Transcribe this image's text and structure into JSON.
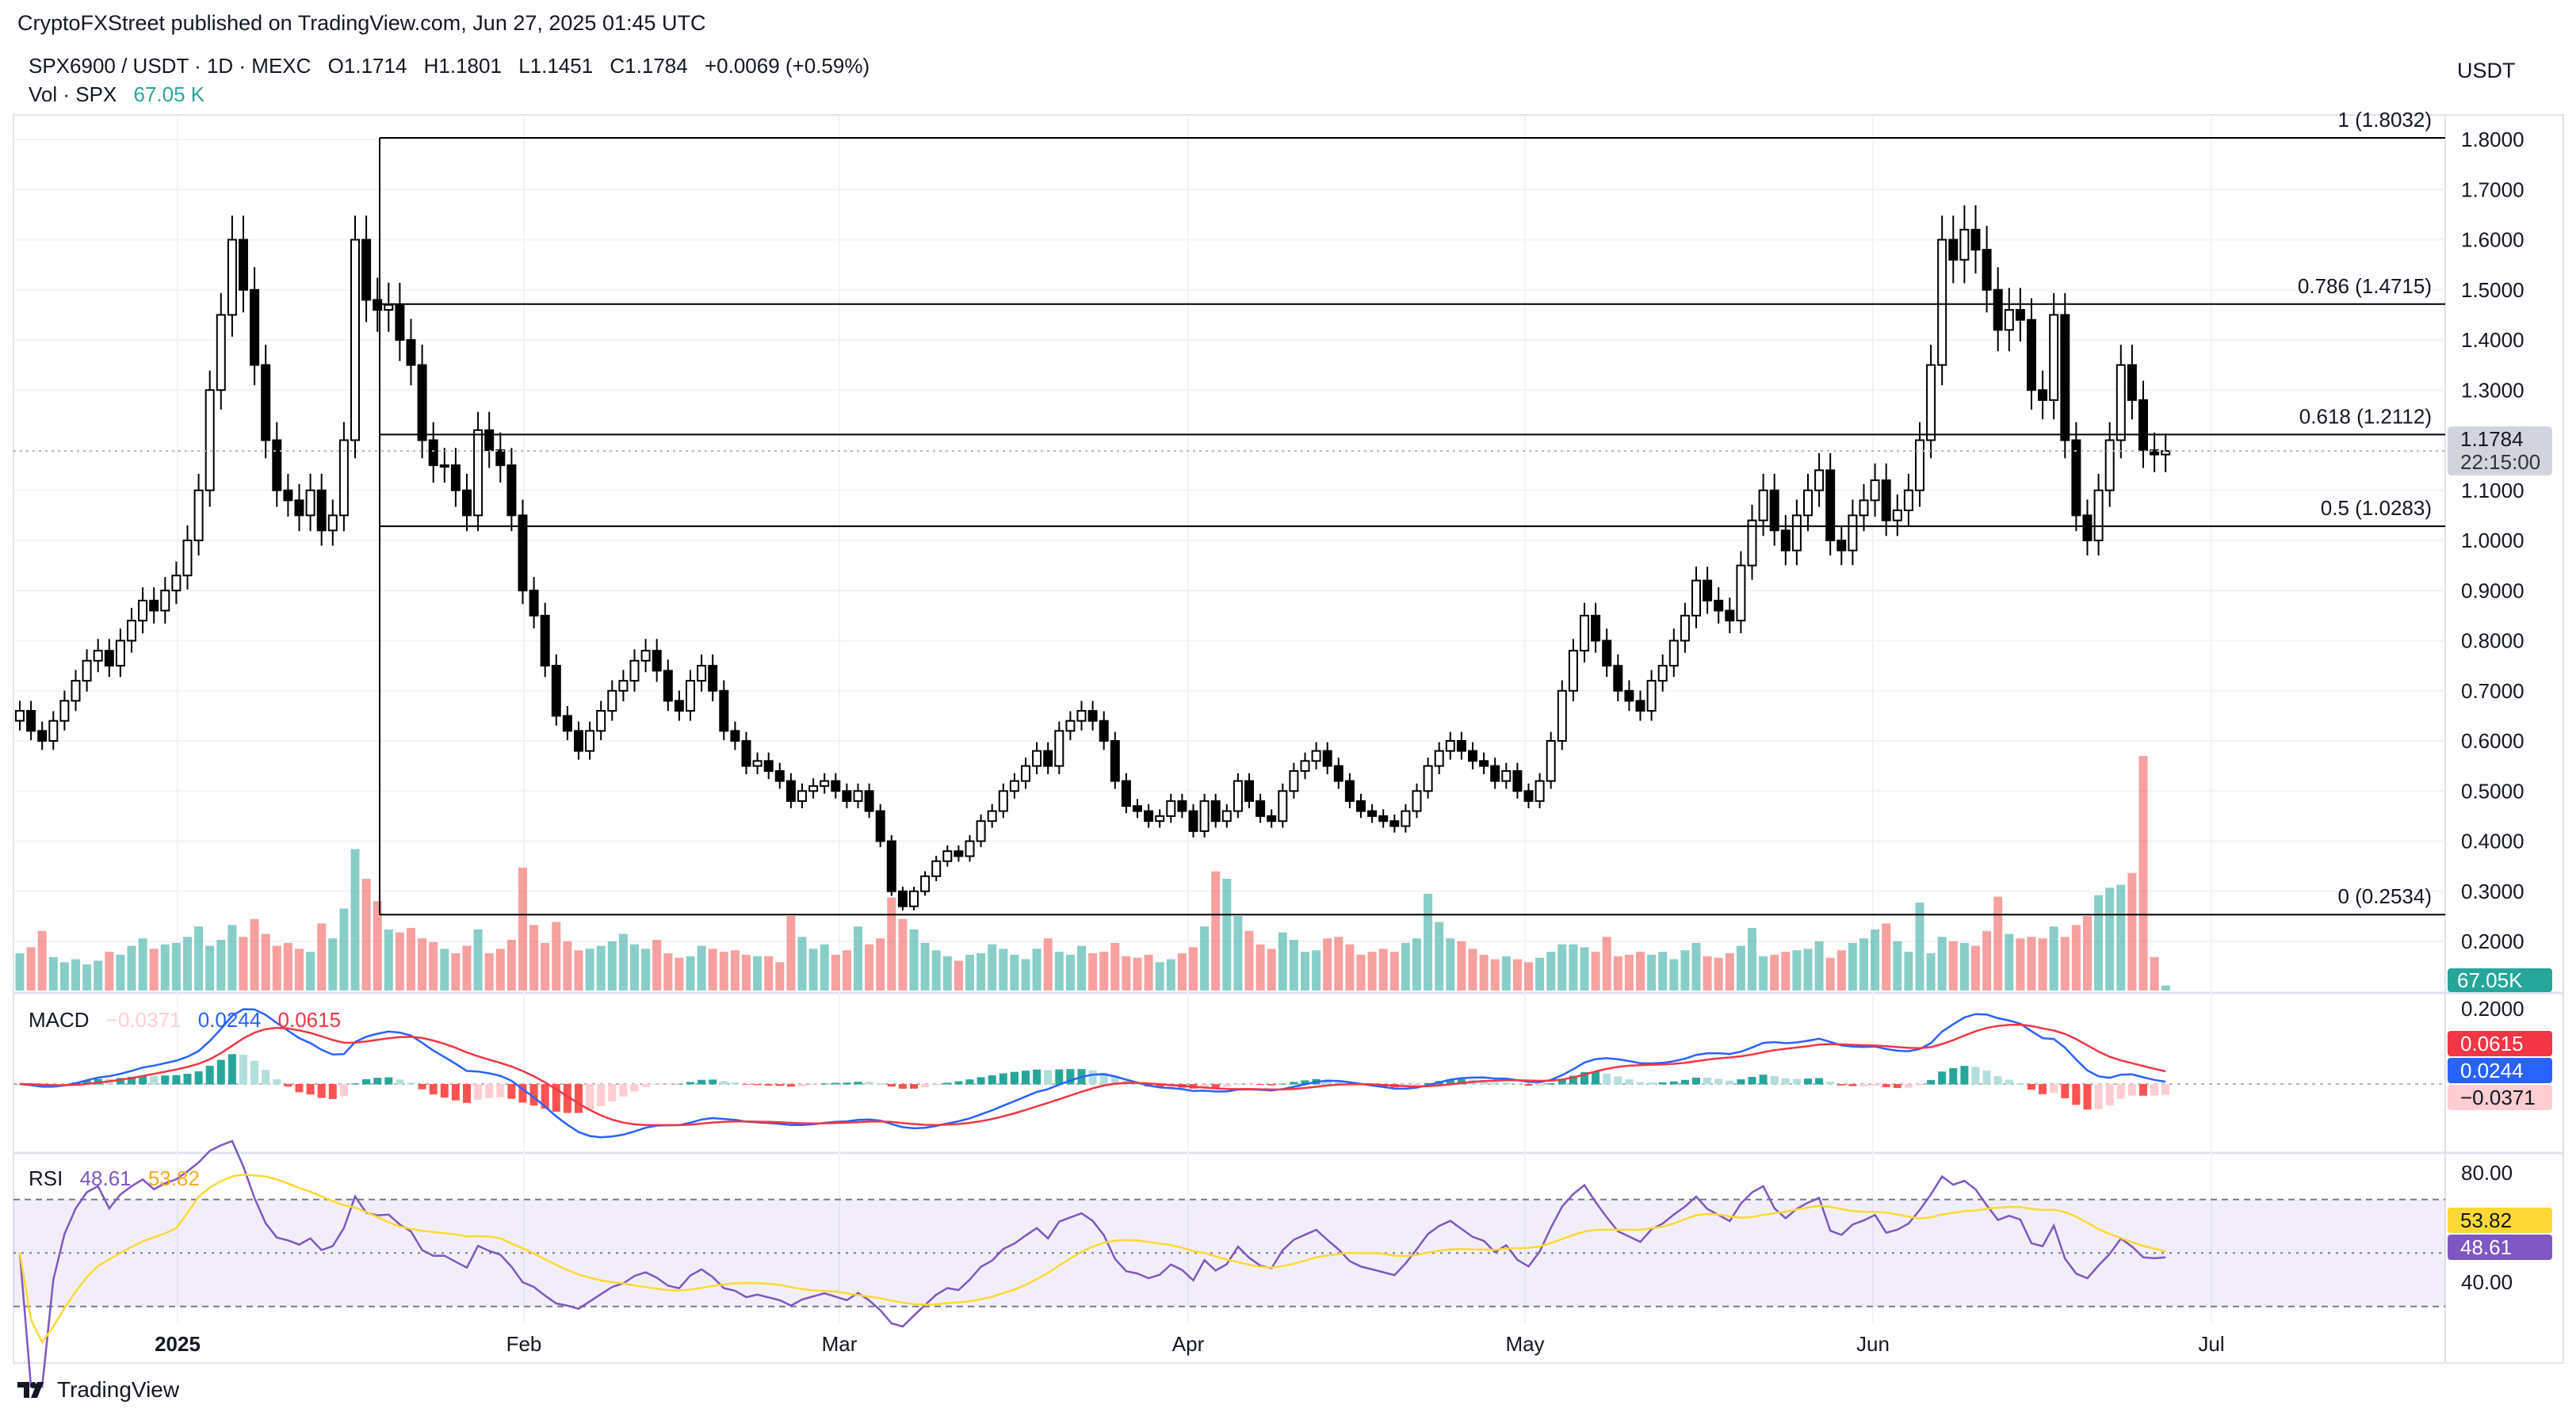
{
  "publisher": "CryptoFXStreet published on TradingView.com, Jun 27, 2025 01:45 UTC",
  "symbol_line": {
    "symbol": "SPX6900 / USDT · 1D · MEXC",
    "open": "O1.1714",
    "high": "H1.1801",
    "low": "L1.1451",
    "close": "C1.1784",
    "change": "+0.0069 (+0.59%)"
  },
  "volume_legend": {
    "label": "Vol · SPX",
    "value": "67.05 K"
  },
  "currency": "USDT",
  "price_axis": [
    "1.8000",
    "1.7000",
    "1.6000",
    "1.5000",
    "1.4000",
    "1.3000",
    "1.1000",
    "1.0000",
    "0.9000",
    "0.8000",
    "0.7000",
    "0.6000",
    "0.5000",
    "0.4000",
    "0.3000",
    "0.2000"
  ],
  "last_price": {
    "value": "1.1784",
    "countdown": "22:15:00"
  },
  "volume_badge": "67.05K",
  "fib_levels": [
    {
      "label": "1 (1.8032)",
      "price": 1.8032
    },
    {
      "label": "0.786 (1.4715)",
      "price": 1.4715
    },
    {
      "label": "0.618 (1.2112)",
      "price": 1.2112
    },
    {
      "label": "0.5 (1.0283)",
      "price": 1.0283
    },
    {
      "label": "0 (0.2534)",
      "price": 0.2534
    }
  ],
  "macd": {
    "label": "MACD",
    "hist": "−0.0371",
    "macd": "0.0244",
    "signal": "0.0615",
    "axis": "0.2000"
  },
  "rsi": {
    "label": "RSI",
    "rsi": "48.61",
    "ma": "53.82",
    "axis": [
      "80.00",
      "40.00"
    ],
    "upper_band": 70,
    "lower_band": 30
  },
  "time_axis": [
    "2025",
    "Feb",
    "Mar",
    "Apr",
    "May",
    "Jun",
    "Jul"
  ],
  "footer": "TradingView",
  "colors": {
    "up_vol": "#26a69a",
    "down_vol": "#ef5350",
    "macd": "#2962ff",
    "signal": "#f23645",
    "rsi": "#7e57c2",
    "rsi_ma": "#fdd835"
  },
  "chart_data": {
    "type": "candlestick",
    "first_date": "2024-12-17",
    "last_date": "2025-06-27",
    "closes": [
      0.66,
      0.62,
      0.6,
      0.64,
      0.68,
      0.72,
      0.76,
      0.78,
      0.75,
      0.8,
      0.84,
      0.88,
      0.86,
      0.9,
      0.93,
      1.0,
      1.1,
      1.3,
      1.45,
      1.6,
      1.5,
      1.35,
      1.2,
      1.1,
      1.08,
      1.05,
      1.1,
      1.02,
      1.05,
      1.2,
      1.6,
      1.48,
      1.46,
      1.47,
      1.4,
      1.35,
      1.2,
      1.15,
      1.15,
      1.1,
      1.05,
      1.22,
      1.18,
      1.15,
      1.05,
      0.9,
      0.85,
      0.75,
      0.65,
      0.62,
      0.58,
      0.62,
      0.66,
      0.7,
      0.72,
      0.76,
      0.78,
      0.74,
      0.68,
      0.66,
      0.72,
      0.75,
      0.7,
      0.62,
      0.6,
      0.55,
      0.56,
      0.54,
      0.52,
      0.48,
      0.5,
      0.51,
      0.52,
      0.5,
      0.48,
      0.5,
      0.46,
      0.4,
      0.3,
      0.27,
      0.3,
      0.33,
      0.36,
      0.38,
      0.37,
      0.4,
      0.44,
      0.46,
      0.5,
      0.52,
      0.55,
      0.58,
      0.55,
      0.62,
      0.64,
      0.66,
      0.64,
      0.6,
      0.52,
      0.47,
      0.46,
      0.44,
      0.45,
      0.48,
      0.46,
      0.42,
      0.48,
      0.44,
      0.46,
      0.52,
      0.48,
      0.45,
      0.44,
      0.5,
      0.54,
      0.56,
      0.58,
      0.55,
      0.52,
      0.48,
      0.46,
      0.45,
      0.44,
      0.43,
      0.46,
      0.5,
      0.55,
      0.58,
      0.6,
      0.58,
      0.56,
      0.55,
      0.52,
      0.54,
      0.5,
      0.48,
      0.52,
      0.6,
      0.7,
      0.78,
      0.85,
      0.8,
      0.75,
      0.7,
      0.68,
      0.66,
      0.72,
      0.75,
      0.8,
      0.85,
      0.92,
      0.88,
      0.86,
      0.84,
      0.95,
      1.04,
      1.1,
      1.02,
      0.98,
      1.05,
      1.1,
      1.14,
      1.0,
      0.98,
      1.05,
      1.08,
      1.12,
      1.04,
      1.06,
      1.1,
      1.2,
      1.35,
      1.6,
      1.56,
      1.62,
      1.58,
      1.5,
      1.42,
      1.46,
      1.44,
      1.3,
      1.28,
      1.45,
      1.2,
      1.05,
      1.0,
      1.1,
      1.2,
      1.35,
      1.28,
      1.18,
      1.1714,
      1.1784
    ],
    "volume_k": [
      500,
      580,
      800,
      450,
      380,
      420,
      350,
      400,
      520,
      480,
      600,
      700,
      560,
      620,
      640,
      720,
      860,
      600,
      680,
      880,
      720,
      960,
      760,
      600,
      640,
      560,
      520,
      900,
      700,
      1100,
      1900,
      1500,
      1200,
      820,
      780,
      840,
      700,
      650,
      560,
      500,
      600,
      820,
      500,
      560,
      680,
      1650,
      880,
      640,
      920,
      660,
      540,
      560,
      600,
      660,
      760,
      620,
      560,
      680,
      500,
      440,
      460,
      600,
      560,
      520,
      540,
      480,
      460,
      460,
      380,
      1000,
      720,
      560,
      620,
      480,
      540,
      860,
      620,
      700,
      1250,
      960,
      820,
      640,
      540,
      460,
      400,
      480,
      500,
      620,
      560,
      480,
      420,
      560,
      700,
      520,
      480,
      600,
      500,
      520,
      640,
      460,
      440,
      480,
      380,
      420,
      500,
      580,
      860,
      1600,
      1500,
      1000,
      800,
      620,
      560,
      780,
      680,
      520,
      540,
      700,
      720,
      620,
      480,
      520,
      560,
      520,
      640,
      700,
      1300,
      920,
      700,
      660,
      560,
      480,
      420,
      460,
      420,
      380,
      440,
      520,
      620,
      620,
      580,
      520,
      720,
      460,
      480,
      520,
      480,
      520,
      420,
      540,
      640,
      460,
      440,
      500,
      600,
      840,
      460,
      480,
      520,
      540,
      560,
      660,
      440,
      540,
      640,
      700,
      820,
      900,
      660,
      520,
      1180,
      500,
      720,
      660,
      640,
      600,
      800,
      1260,
      760,
      700,
      720,
      700,
      860,
      720,
      880,
      1000,
      1280,
      1380,
      1420,
      1580,
      3150,
      450,
      67.05
    ],
    "ylim": [
      0.15,
      1.85
    ]
  }
}
